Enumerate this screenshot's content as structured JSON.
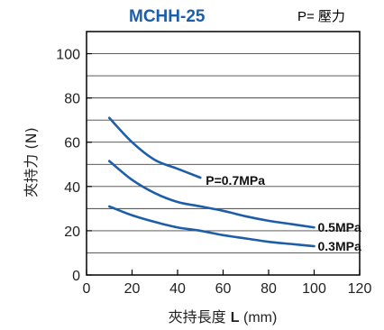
{
  "chart_data": {
    "type": "line",
    "title": "MCHH-25",
    "note": "P= 壓力",
    "xlabel": "夾持長度 L (mm)",
    "xlabel_parts": {
      "text": "夾持長度 ",
      "bold": "L",
      "unit": " (mm)"
    },
    "ylabel": "夾持力 (N)",
    "xlim": [
      0,
      120
    ],
    "ylim": [
      0,
      110
    ],
    "xticks": [
      0,
      20,
      40,
      60,
      80,
      100,
      120
    ],
    "yticks": [
      0,
      20,
      40,
      60,
      80,
      100
    ],
    "grid": "horizontal",
    "series": [
      {
        "name": "P=0.7MPa",
        "x": [
          10,
          20,
          30,
          40,
          50
        ],
        "y": [
          71,
          60,
          52,
          48,
          44
        ]
      },
      {
        "name": "0.5MPa",
        "x": [
          10,
          20,
          30,
          40,
          50,
          60,
          70,
          80,
          90,
          100
        ],
        "y": [
          51.5,
          43,
          37,
          33,
          31,
          29,
          26.5,
          24.5,
          23,
          21.5
        ]
      },
      {
        "name": "0.3MPa",
        "x": [
          10,
          20,
          30,
          40,
          50,
          60,
          70,
          80,
          90,
          100
        ],
        "y": [
          31,
          27,
          24,
          21.5,
          20,
          18,
          16.5,
          15,
          14,
          13
        ]
      }
    ],
    "colors": {
      "line": "#1e5ea8",
      "title": "#1e5ea8",
      "grid": "#444444",
      "axis": "#000000"
    }
  }
}
